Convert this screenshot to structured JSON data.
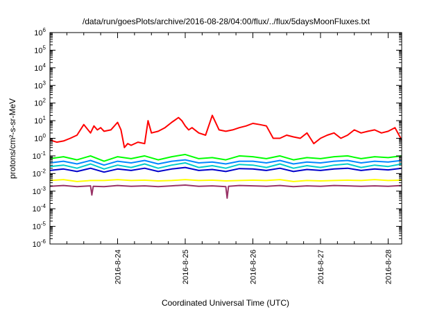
{
  "chart_data": {
    "type": "line",
    "title": "/data/run/goesPlots/archive/2016-08-28/04:00/flux/../flux/5daysMoonFluxes.txt",
    "xlabel": "Coordinated Universal Time (UTC)",
    "ylabel": "protons/cm²-s-sr-MeV",
    "x_ticks": [
      "2016-8-24",
      "2016-8-25",
      "2016-8-26",
      "2016-8-27",
      "2016-8-28"
    ],
    "x_range": [
      0,
      5.2
    ],
    "y_scale": "log",
    "ylim_exp": [
      -6,
      6
    ],
    "y_ticks": [
      {
        "base": "10",
        "exp": "-6"
      },
      {
        "base": "10",
        "exp": "-5"
      },
      {
        "base": "10",
        "exp": "-4"
      },
      {
        "base": "10",
        "exp": "-3"
      },
      {
        "base": "10",
        "exp": "-2"
      },
      {
        "base": "10",
        "exp": "-1"
      },
      {
        "base": "10",
        "exp": "0"
      },
      {
        "base": "10",
        "exp": "1"
      },
      {
        "base": "10",
        "exp": "2"
      },
      {
        "base": "10",
        "exp": "3"
      },
      {
        "base": "10",
        "exp": "4"
      },
      {
        "base": "10",
        "exp": "5"
      },
      {
        "base": "10",
        "exp": "6"
      }
    ],
    "grid": false,
    "series": [
      {
        "color": "#ff0000",
        "x": [
          0.0,
          0.1,
          0.2,
          0.3,
          0.4,
          0.5,
          0.6,
          0.65,
          0.7,
          0.75,
          0.8,
          0.9,
          1.0,
          1.05,
          1.1,
          1.15,
          1.2,
          1.3,
          1.4,
          1.45,
          1.5,
          1.6,
          1.7,
          1.8,
          1.9,
          1.95,
          2.0,
          2.05,
          2.1,
          2.2,
          2.3,
          2.4,
          2.5,
          2.6,
          2.7,
          2.8,
          2.9,
          3.0,
          3.1,
          3.2,
          3.3,
          3.4,
          3.5,
          3.6,
          3.7,
          3.8,
          3.85,
          3.9,
          4.0,
          4.1,
          4.2,
          4.3,
          4.4,
          4.5,
          4.6,
          4.7,
          4.8,
          4.9,
          5.0,
          5.1,
          5.2
        ],
        "values": [
          0.8,
          0.6,
          0.7,
          1.0,
          1.5,
          6.0,
          2.0,
          5.0,
          3.0,
          4.0,
          2.5,
          3.0,
          8.0,
          3.0,
          0.3,
          0.5,
          0.4,
          0.6,
          0.5,
          10.0,
          2.0,
          2.5,
          4.0,
          8.0,
          15.0,
          10.0,
          5.0,
          3.0,
          4.0,
          2.0,
          1.5,
          20.0,
          3.0,
          2.5,
          3.0,
          4.0,
          5.0,
          7.0,
          6.0,
          5.0,
          1.0,
          1.0,
          1.5,
          1.2,
          1.0,
          2.0,
          1.0,
          0.5,
          1.0,
          1.5,
          2.0,
          1.0,
          1.5,
          3.0,
          2.0,
          2.5,
          3.0,
          2.0,
          2.5,
          4.0,
          0.8
        ]
      },
      {
        "color": "#00ff00",
        "x": [
          0.0,
          0.2,
          0.4,
          0.6,
          0.8,
          1.0,
          1.2,
          1.4,
          1.6,
          1.8,
          2.0,
          2.2,
          2.4,
          2.6,
          2.8,
          3.0,
          3.2,
          3.4,
          3.6,
          3.8,
          4.0,
          4.2,
          4.4,
          4.6,
          4.8,
          5.0,
          5.2
        ],
        "values": [
          0.07,
          0.09,
          0.06,
          0.1,
          0.05,
          0.09,
          0.07,
          0.1,
          0.06,
          0.09,
          0.12,
          0.07,
          0.08,
          0.06,
          0.1,
          0.09,
          0.07,
          0.1,
          0.06,
          0.08,
          0.07,
          0.09,
          0.1,
          0.07,
          0.09,
          0.08,
          0.1
        ]
      },
      {
        "color": "#00cccc",
        "x": [
          0.0,
          0.2,
          0.4,
          0.6,
          0.8,
          1.0,
          1.2,
          1.4,
          1.6,
          1.8,
          2.0,
          2.2,
          2.4,
          2.6,
          2.8,
          3.0,
          3.2,
          3.4,
          3.6,
          3.8,
          4.0,
          4.2,
          4.4,
          4.6,
          4.8,
          5.0,
          5.2
        ],
        "values": [
          0.025,
          0.03,
          0.02,
          0.035,
          0.018,
          0.03,
          0.022,
          0.035,
          0.02,
          0.03,
          0.04,
          0.022,
          0.028,
          0.02,
          0.033,
          0.03,
          0.022,
          0.035,
          0.02,
          0.028,
          0.022,
          0.03,
          0.035,
          0.022,
          0.03,
          0.025,
          0.035
        ]
      },
      {
        "color": "#0088ff",
        "x": [
          0.0,
          0.2,
          0.4,
          0.6,
          0.8,
          1.0,
          1.2,
          1.4,
          1.6,
          1.8,
          2.0,
          2.2,
          2.4,
          2.6,
          2.8,
          3.0,
          3.2,
          3.4,
          3.6,
          3.8,
          4.0,
          4.2,
          4.4,
          4.6,
          4.8,
          5.0,
          5.2
        ],
        "values": [
          0.04,
          0.05,
          0.035,
          0.055,
          0.03,
          0.05,
          0.04,
          0.055,
          0.035,
          0.05,
          0.06,
          0.04,
          0.045,
          0.035,
          0.05,
          0.05,
          0.04,
          0.055,
          0.035,
          0.045,
          0.04,
          0.05,
          0.055,
          0.04,
          0.05,
          0.045,
          0.055
        ]
      },
      {
        "color": "#0000cc",
        "x": [
          0.0,
          0.2,
          0.4,
          0.6,
          0.8,
          1.0,
          1.2,
          1.4,
          1.6,
          1.8,
          2.0,
          2.2,
          2.4,
          2.6,
          2.8,
          3.0,
          3.2,
          3.4,
          3.6,
          3.8,
          4.0,
          4.2,
          4.4,
          4.6,
          4.8,
          5.0,
          5.2
        ],
        "values": [
          0.015,
          0.018,
          0.013,
          0.02,
          0.012,
          0.018,
          0.015,
          0.02,
          0.013,
          0.018,
          0.022,
          0.015,
          0.017,
          0.013,
          0.019,
          0.018,
          0.015,
          0.02,
          0.013,
          0.017,
          0.015,
          0.018,
          0.02,
          0.015,
          0.018,
          0.016,
          0.02
        ]
      },
      {
        "color": "#ffff00",
        "x": [
          0.0,
          0.2,
          0.4,
          0.6,
          0.8,
          1.0,
          1.2,
          1.4,
          1.6,
          1.8,
          2.0,
          2.2,
          2.4,
          2.6,
          2.8,
          3.0,
          3.2,
          3.4,
          3.6,
          3.8,
          4.0,
          4.2,
          4.4,
          4.6,
          4.8,
          5.0,
          5.2
        ],
        "values": [
          0.004,
          0.0045,
          0.0035,
          0.004,
          0.004,
          0.0045,
          0.004,
          0.0042,
          0.0038,
          0.004,
          0.0045,
          0.004,
          0.0042,
          0.0038,
          0.004,
          0.0042,
          0.004,
          0.0045,
          0.0035,
          0.004,
          0.0038,
          0.004,
          0.0042,
          0.004,
          0.0045,
          0.004,
          0.0042
        ]
      },
      {
        "color": "#993366",
        "x": [
          0.0,
          0.2,
          0.4,
          0.6,
          0.62,
          0.64,
          0.8,
          1.0,
          1.2,
          1.4,
          1.6,
          1.8,
          2.0,
          2.2,
          2.4,
          2.6,
          2.62,
          2.64,
          2.8,
          3.0,
          3.2,
          3.4,
          3.6,
          3.8,
          4.0,
          4.2,
          4.4,
          4.6,
          4.8,
          5.0,
          5.2
        ],
        "values": [
          0.0019,
          0.0021,
          0.0018,
          0.002,
          0.0006,
          0.0019,
          0.0018,
          0.0021,
          0.0019,
          0.002,
          0.0018,
          0.002,
          0.0022,
          0.0019,
          0.002,
          0.0018,
          0.0004,
          0.0019,
          0.0021,
          0.002,
          0.0019,
          0.0021,
          0.0018,
          0.002,
          0.0019,
          0.0021,
          0.002,
          0.0019,
          0.002,
          0.0019,
          0.0021
        ]
      }
    ]
  }
}
